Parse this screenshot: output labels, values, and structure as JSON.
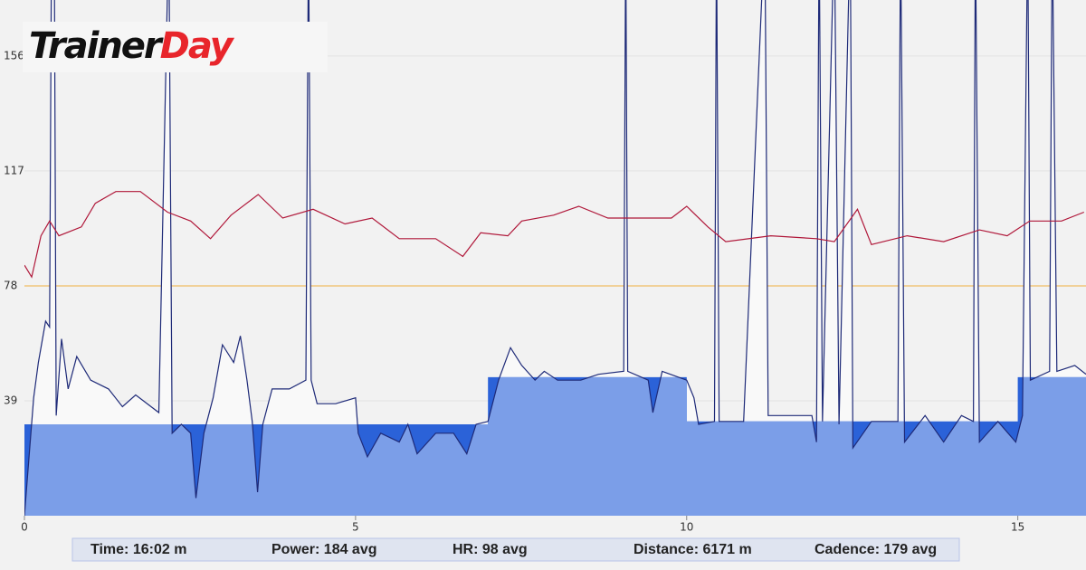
{
  "logo": [
    "Trainer",
    "Day"
  ],
  "summary": [
    "Time: 16:02 m",
    "Power: 184 avg",
    "HR: 98 avg",
    "Distance: 6171 m",
    "Cadence: 179 avg"
  ],
  "chart_data": {
    "type": "line",
    "xlim": [
      0,
      16.03
    ],
    "xticks": [
      0,
      5,
      10,
      15
    ],
    "ylim": [
      0,
      175
    ],
    "yticks": [
      39,
      78,
      117,
      156
    ],
    "grid": true,
    "reference_line": {
      "value": 78,
      "color": "#f0b040"
    },
    "series": [
      {
        "style": "step-area",
        "color": "#7b9ee8",
        "under_color": "#2b62d8",
        "x": [
          0,
          7,
          7,
          10,
          10,
          15,
          15,
          16.03
        ],
        "values": [
          31,
          31,
          47,
          47,
          32,
          32,
          47,
          47
        ]
      },
      {
        "style": "line",
        "color": "#1e2a78",
        "above_color": "#f9f9f9",
        "x": [
          0,
          0.14,
          0.21,
          0.32,
          0.38,
          0.41,
          0.45,
          0.48,
          0.56,
          0.66,
          0.79,
          1.0,
          1.27,
          1.48,
          1.68,
          2.03,
          2.18,
          2.23,
          2.37,
          2.51,
          2.59,
          2.71,
          2.85,
          2.99,
          3.16,
          3.26,
          3.36,
          3.44,
          3.52,
          3.6,
          3.74,
          4.0,
          4.25,
          4.29,
          4.33,
          4.42,
          4.7,
          5.0,
          5.04,
          5.18,
          5.38,
          5.66,
          5.79,
          5.93,
          6.21,
          6.48,
          6.68,
          6.82,
          7.0,
          7.16,
          7.34,
          7.51,
          7.71,
          7.85,
          8.05,
          8.4,
          8.67,
          9.05,
          9.08,
          9.11,
          9.42,
          9.49,
          9.63,
          10.0,
          10.11,
          10.18,
          10.42,
          10.45,
          10.49,
          10.86,
          11.18,
          11.23,
          11.89,
          11.96,
          12.0,
          12.05,
          12.23,
          12.3,
          12.47,
          12.51,
          12.79,
          13.19,
          13.23,
          13.29,
          13.6,
          13.88,
          14.15,
          14.33,
          14.36,
          14.42,
          14.7,
          14.97,
          15.07,
          15.15,
          15.19,
          15.48,
          15.52,
          15.59,
          15.86,
          16.03
        ],
        "values": [
          0,
          40,
          52,
          66,
          64,
          200,
          200,
          34,
          60,
          43,
          54,
          46,
          43,
          37,
          41,
          35,
          200,
          28,
          31,
          28,
          6,
          28,
          40,
          58,
          52,
          61,
          46,
          32,
          8,
          31,
          43,
          43,
          46,
          200,
          46,
          38,
          38,
          40,
          28,
          20,
          28,
          25,
          31,
          21,
          28,
          28,
          21,
          31,
          32,
          46,
          57,
          51,
          46,
          49,
          46,
          46,
          48,
          49,
          200,
          49,
          46,
          35,
          49,
          46,
          40,
          31,
          32,
          200,
          32,
          32,
          200,
          34,
          34,
          25,
          200,
          32,
          200,
          31,
          200,
          23,
          32,
          32,
          200,
          25,
          34,
          25,
          34,
          32,
          200,
          25,
          32,
          25,
          34,
          200,
          46,
          49,
          200,
          49,
          51,
          48
        ]
      },
      {
        "style": "line",
        "color": "#b0183a",
        "x": [
          0,
          0.11,
          0.25,
          0.38,
          0.52,
          0.86,
          1.07,
          1.38,
          1.75,
          2.16,
          2.51,
          2.81,
          3.12,
          3.53,
          3.9,
          4.36,
          4.84,
          5.25,
          5.66,
          6.21,
          6.62,
          6.89,
          7.3,
          7.51,
          7.99,
          8.37,
          8.81,
          9.22,
          9.77,
          10.0,
          10.32,
          10.59,
          11.27,
          11.96,
          12.23,
          12.58,
          12.79,
          13.33,
          13.88,
          14.42,
          14.84,
          15.18,
          15.66,
          16.0
        ],
        "values": [
          85,
          81,
          95,
          100,
          95,
          98,
          106,
          110,
          110,
          103,
          100,
          94,
          102,
          109,
          101,
          104,
          99,
          101,
          94,
          94,
          88,
          96,
          95,
          100,
          102,
          105,
          101,
          101,
          101,
          105,
          98,
          93,
          95,
          94,
          93,
          104,
          92,
          95,
          93,
          97,
          95,
          100,
          100,
          103
        ]
      }
    ]
  }
}
